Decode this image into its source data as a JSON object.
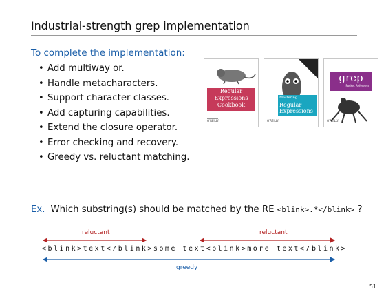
{
  "title": "Industrial-strength grep implementation",
  "intro": "To complete the implementation:",
  "bullets": [
    "Add multiway or.",
    "Handle metacharacters.",
    "Support character classes.",
    "Add capturing capabilities.",
    "Extend the closure operator.",
    "Error checking and recovery.",
    "Greedy vs. reluctant matching."
  ],
  "books": [
    {
      "title_lines": [
        "Regular",
        "Expressions",
        "Cookbook"
      ],
      "publisher": "O'REILLY",
      "color": "#c63a5a"
    },
    {
      "title_lines": [
        "Mastering",
        "Regular",
        "Expressions"
      ],
      "publisher": "O'REILLY",
      "color": "#1aa6c0"
    },
    {
      "title_lines": [
        "grep"
      ],
      "subtitle": "Pocket Reference",
      "publisher": "O'REILLY",
      "color": "#8a2f8a"
    }
  ],
  "example": {
    "prefix": "Ex.",
    "text": "Which substring(s) should be matched by the RE",
    "re": "<blink>.*</blink>",
    "suffix": "?"
  },
  "labels": {
    "reluctant_left": "reluctant",
    "reluctant_right": "reluctant",
    "greedy": "greedy"
  },
  "sample_text": "<blink>text</blink>some text<blink>more text</blink>",
  "page_number": "51",
  "colors": {
    "accent_blue": "#1a5ea8",
    "arrow_red": "#b32222"
  }
}
